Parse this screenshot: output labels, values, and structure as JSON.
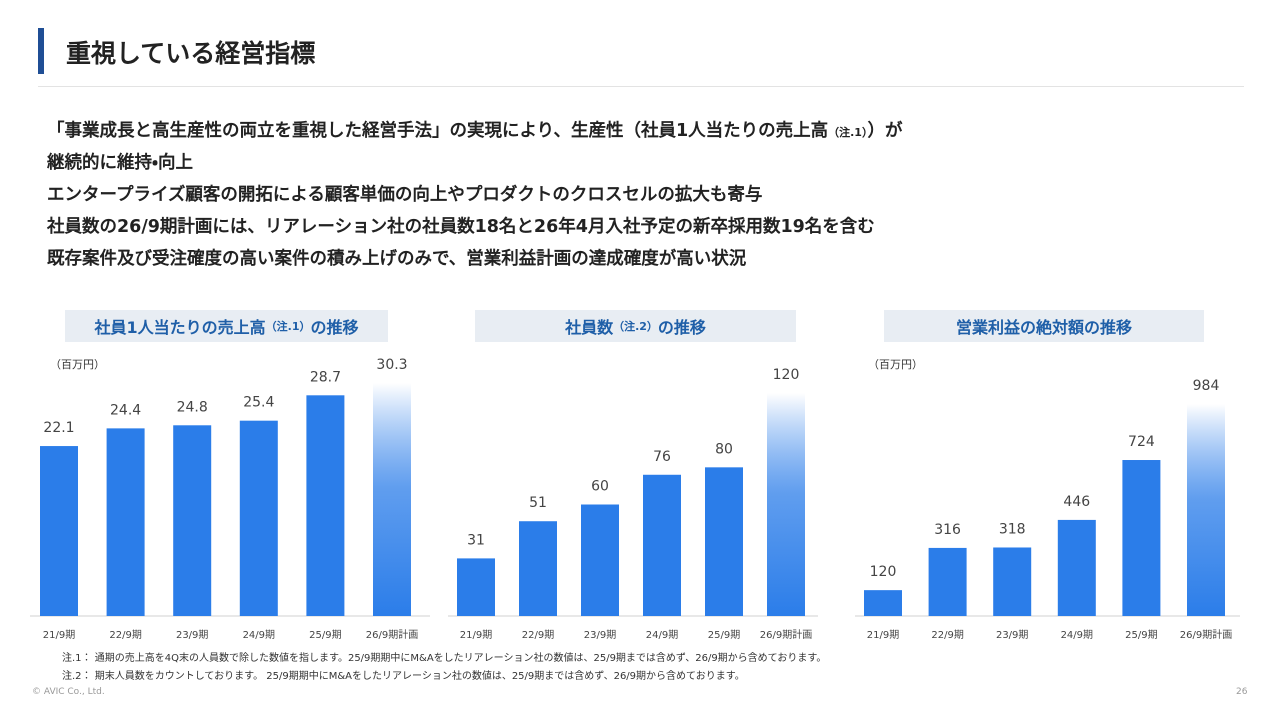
{
  "title": "重視している経営指標",
  "statements": [
    [
      "「事業成長と高生産性の両立を重視した経営手法」の実現により、生産性（社員1人当たりの売上高",
      "（注.1）",
      "）が",
      "継続的に維持・向上"
    ],
    [
      "エンタープライズ顧客の開拓による顧客単価の向上やプロダクトのクロスセルの拡大も寄与"
    ],
    [
      "社員数の26/9期計画には、リアレーション社の社員数18名と26年4月入社予定の新卒採用数19名を含む"
    ],
    [
      "既存案件及び受注確度の高い案件の積み上げのみで、営業利益計画の達成確度が高い状況"
    ]
  ],
  "chart_data": [
    {
      "type": "bar",
      "title": "社員1人当たりの売上高",
      "title_note": "（注.1）",
      "title_suffix": "の推移",
      "unit": "（百万円）",
      "categories": [
        "21/9期",
        "22/9期",
        "23/9期",
        "24/9期",
        "25/9期",
        "26/9期計画"
      ],
      "values": [
        22.1,
        24.4,
        24.8,
        25.4,
        28.7,
        30.3
      ],
      "color": "#2b7de9"
    },
    {
      "type": "bar",
      "title": "社員数",
      "title_note": "（注.2）",
      "title_suffix": "の推移",
      "categories": [
        "21/9期",
        "22/9期",
        "23/9期",
        "24/9期",
        "25/9期",
        "26/9期計画"
      ],
      "values": [
        31,
        51,
        60,
        76,
        80,
        120
      ],
      "color": "#2b7de9"
    },
    {
      "type": "bar",
      "title": "営業利益の絶対額の推移",
      "unit": "（百万円）",
      "categories": [
        "21/9期",
        "22/9期",
        "23/9期",
        "24/9期",
        "25/9期",
        "26/9期計画"
      ],
      "values": [
        120,
        316,
        318,
        446,
        724,
        984
      ],
      "color": "#2b7de9"
    }
  ],
  "notes": [
    "注.1： 通期の売上高を4Q末の人員数で除した数値を指します。25/9期期中にM&Aをしたリアレーション社の数値は、25/9期までは含めず、26/9期から含めております。",
    "注.2： 期末人員数をカウントしております。 25/9期期中にM&Aをしたリアレーション社の数値は、25/9期までは含めず、26/9期から含めております。"
  ],
  "copyright": "© AVIC Co., Ltd.",
  "page_number": "26"
}
